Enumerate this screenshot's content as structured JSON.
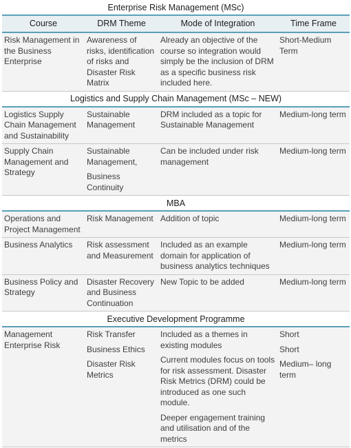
{
  "title": "Enterprise Risk Management (MSc)",
  "columns": [
    "Course",
    "DRM Theme",
    "Mode of Integration",
    "Time Frame"
  ],
  "sections": [
    {
      "name": "Enterprise Risk Management (MSc)",
      "rows": [
        {
          "course": "Risk Management in the Business Enterprise",
          "theme": [
            "Awareness of risks, identification of risks and Disaster Risk Matrix"
          ],
          "mode": [
            "Already an objective of the course so integration would simply be the inclusion of DRM as a specific business risk included here."
          ],
          "time": [
            "Short-Medium Term"
          ]
        }
      ]
    },
    {
      "name": "Logistics and Supply Chain Management (MSc – NEW)",
      "rows": [
        {
          "course": "Logistics Supply Chain Management and Sustainability",
          "theme": [
            "Sustainable Management"
          ],
          "mode": [
            "DRM included as a topic for Sustainable Management"
          ],
          "time": [
            " Medium-long term"
          ]
        },
        {
          "course": "Supply Chain Management and Strategy",
          "theme": [
            " Sustainable Management,",
            "Business Continuity"
          ],
          "mode": [
            "Can be included under risk management"
          ],
          "time": [
            "Medium-long term"
          ]
        }
      ]
    },
    {
      "name": "MBA",
      "rows": [
        {
          "course": "Operations and Project Management",
          "theme": [
            "Risk Management"
          ],
          "mode": [
            "Addition of topic"
          ],
          "time": [
            " Medium-long term"
          ]
        },
        {
          "course": "Business Analytics",
          "theme": [
            "Risk assessment and Measurement"
          ],
          "mode": [
            "Included as an example domain for application of business analytics techniques"
          ],
          "time": [
            "Medium-long term"
          ]
        },
        {
          "course": "Business Policy and Strategy",
          "theme": [
            "Disaster Recovery and Business Continuation"
          ],
          "mode": [
            "New Topic to be added"
          ],
          "time": [
            "Medium-long term"
          ]
        }
      ]
    },
    {
      "name": "Executive Development Programme",
      "rows": [
        {
          "course": "Management Enterprise Risk",
          "theme": [
            "Risk Transfer",
            "Business Ethics",
            "Disaster Risk Metrics"
          ],
          "mode": [
            "Included as a themes in existing modules",
            "Current modules focus on tools for risk assessment. Disaster Risk Metrics (DRM) could be introduced as one such module.",
            "Deeper engagement training and utilisation and of the metrics"
          ],
          "time": [
            "Short",
            "Short",
            "Medium– long term"
          ]
        }
      ]
    }
  ]
}
